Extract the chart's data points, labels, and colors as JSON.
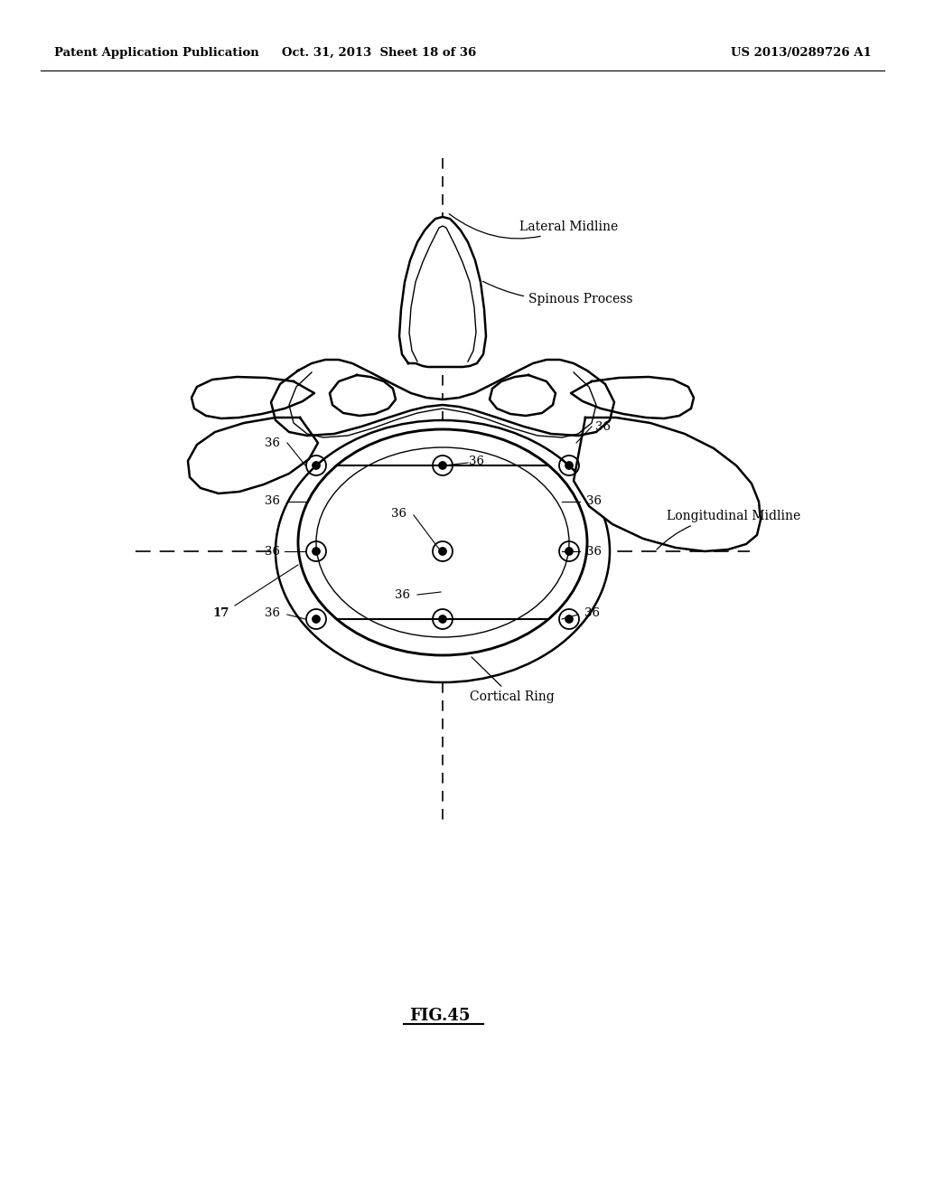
{
  "background_color": "#ffffff",
  "header_left": "Patent Application Publication",
  "header_center": "Oct. 31, 2013  Sheet 18 of 36",
  "header_right": "US 2013/0289726 A1",
  "figure_label": "FIG.45"
}
